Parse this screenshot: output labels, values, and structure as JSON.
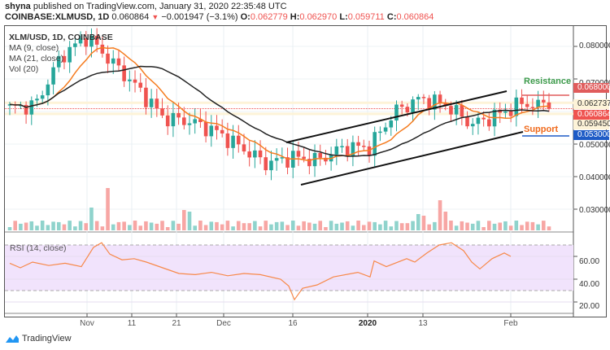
{
  "header": {
    "publisher": "shyna",
    "published_text": "published on TradingView.com, January 31, 2020 22:35:48 UTC",
    "symbol": "COINBASE:XLMUSD, 1D",
    "last": "0.060864",
    "change": "−0.001947 (−3.1%)",
    "o_label": "O:",
    "o": "0.062779",
    "h_label": "H:",
    "h": "0.062970",
    "l_label": "L:",
    "l": "0.059711",
    "c_label": "C:",
    "c": "0.060864"
  },
  "legend": {
    "title": "XLM/USD, 1D, COINBASE",
    "ma9": "MA (9, close)",
    "ma21": "MA (21, close)",
    "vol": "Vol (20)"
  },
  "rsi": {
    "label": "RSI (14, close)",
    "ticks": [
      "60.00",
      "40.00",
      "20.00"
    ]
  },
  "price_axis": {
    "ticks": [
      "0.080000",
      "0.070000",
      "0.050000",
      "0.040000",
      "0.030000"
    ],
    "labels": [
      {
        "value": "0.068000",
        "bg": "#e05c5c",
        "fg": "#ffffff"
      },
      {
        "value": "0.062737",
        "bg": "#fdf3d8",
        "fg": "#333333"
      },
      {
        "value": "0.060864",
        "bg": "#ef5350",
        "fg": "#ffffff"
      },
      {
        "value": "0.059450",
        "bg": "#fdf3d8",
        "fg": "#333333"
      },
      {
        "value": "0.053000",
        "bg": "#1e5bc6",
        "fg": "#ffffff"
      }
    ]
  },
  "annotations": {
    "resistance": "Resistance",
    "support": "Support"
  },
  "time_axis": [
    "Nov",
    "11",
    "21",
    "Dec",
    "16",
    "2020",
    "13",
    "Feb"
  ],
  "footer": {
    "brand": "TradingView"
  },
  "colors": {
    "up": "#26a69a",
    "down": "#ef5350",
    "ma9": "#f57c1f",
    "ma21": "#222222",
    "resistance_label": "#3c9a4a",
    "support_label": "#f06a1c",
    "rsi_line": "#f7894a",
    "rsi_band": "#f1e3fc"
  },
  "chart_data": {
    "type": "candlestick",
    "title": "COINBASE:XLMUSD, 1D",
    "series": [
      {
        "name": "MA (9, close)",
        "color": "#f57c1f"
      },
      {
        "name": "MA (21, close)",
        "color": "#222222"
      },
      {
        "name": "Vol (20)"
      },
      {
        "name": "RSI (14, close)",
        "color": "#f7894a"
      }
    ],
    "x_ticks": [
      "Nov",
      "11",
      "21",
      "Dec",
      "16",
      "2020",
      "13",
      "Feb"
    ],
    "y_ticks": [
      0.03,
      0.04,
      0.05,
      0.07,
      0.08
    ],
    "ylim": [
      0.024,
      0.086
    ],
    "ohlc_last": {
      "open": 0.062779,
      "high": 0.06297,
      "low": 0.059711,
      "close": 0.060864
    },
    "levels": {
      "resistance": 0.068,
      "support": 0.053,
      "marked": [
        0.062737,
        0.05945
      ]
    },
    "approx_close_path": [
      {
        "x": "Oct 23",
        "close": 0.061
      },
      {
        "x": "Nov 1",
        "close": 0.062
      },
      {
        "x": "Nov 5",
        "close": 0.077
      },
      {
        "x": "Nov 6",
        "close": 0.083
      },
      {
        "x": "Nov 14",
        "close": 0.075
      },
      {
        "x": "Nov 21",
        "close": 0.067
      },
      {
        "x": "Nov 25",
        "close": 0.058
      },
      {
        "x": "Dec 1",
        "close": 0.057
      },
      {
        "x": "Dec 10",
        "close": 0.054
      },
      {
        "x": "Dec 16",
        "close": 0.049
      },
      {
        "x": "Dec 17",
        "close": 0.044
      },
      {
        "x": "Dec 25",
        "close": 0.046
      },
      {
        "x": "Jan 1",
        "close": 0.045
      },
      {
        "x": "Jan 4",
        "close": 0.049
      },
      {
        "x": "Jan 10",
        "close": 0.049
      },
      {
        "x": "Jan 14",
        "close": 0.06
      },
      {
        "x": "Jan 17",
        "close": 0.064
      },
      {
        "x": "Jan 20",
        "close": 0.062
      },
      {
        "x": "Jan 23",
        "close": 0.056
      },
      {
        "x": "Jan 27",
        "close": 0.059
      },
      {
        "x": "Jan 30",
        "close": 0.0627
      },
      {
        "x": "Jan 31",
        "close": 0.060864
      }
    ],
    "rsi_range": [
      20,
      72
    ],
    "rsi_bands": [
      30,
      70
    ],
    "rsi_last": 60
  }
}
